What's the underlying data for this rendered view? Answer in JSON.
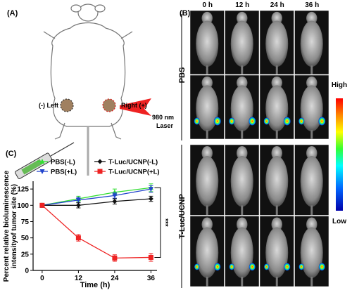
{
  "panel_a": {
    "label": "(A)",
    "left_label": "(-) Left",
    "right_label": "Right (+)",
    "laser_label": [
      "980 nm",
      "Laser"
    ]
  },
  "panel_b": {
    "label": "(B)",
    "times": [
      "0 h",
      "12 h",
      "24 h",
      "36 h"
    ],
    "groups": [
      "PBS",
      "T-Luc/UCNP"
    ],
    "colorbar": {
      "high": "High",
      "low": "Low"
    }
  },
  "chart_data": {
    "type": "line",
    "label": "(C)",
    "ylabel": [
      "Percent relative bioluminescence",
      "intensityof tumor site (%)"
    ],
    "xlabel": "Time (h)",
    "x": [
      0,
      12,
      24,
      36
    ],
    "series": [
      {
        "name": "PBS(-L)",
        "color": "#33dd33",
        "marker": "triangle-up",
        "values": [
          100,
          110,
          120,
          127
        ],
        "errors": [
          3,
          4,
          5,
          6
        ]
      },
      {
        "name": "PBS(+L)",
        "color": "#2244cc",
        "marker": "triangle-down",
        "values": [
          100,
          108,
          115,
          125
        ],
        "errors": [
          3,
          4,
          4,
          5
        ]
      },
      {
        "name": "T-Luc/UCNP(-L)",
        "color": "#111111",
        "marker": "diamond",
        "values": [
          100,
          100,
          106,
          110
        ],
        "errors": [
          3,
          4,
          4,
          4
        ]
      },
      {
        "name": "T-Luc/UCNP(+L)",
        "color": "#ee2222",
        "marker": "square",
        "values": [
          100,
          50,
          19,
          20
        ],
        "errors": [
          2,
          5,
          5,
          6
        ]
      }
    ],
    "xlim": [
      -3,
      38
    ],
    "ylim": [
      0,
      137
    ],
    "xticks": [
      0,
      12,
      24,
      36
    ],
    "yticks": [
      0,
      25,
      50,
      75,
      100,
      125
    ],
    "significance": "***"
  }
}
